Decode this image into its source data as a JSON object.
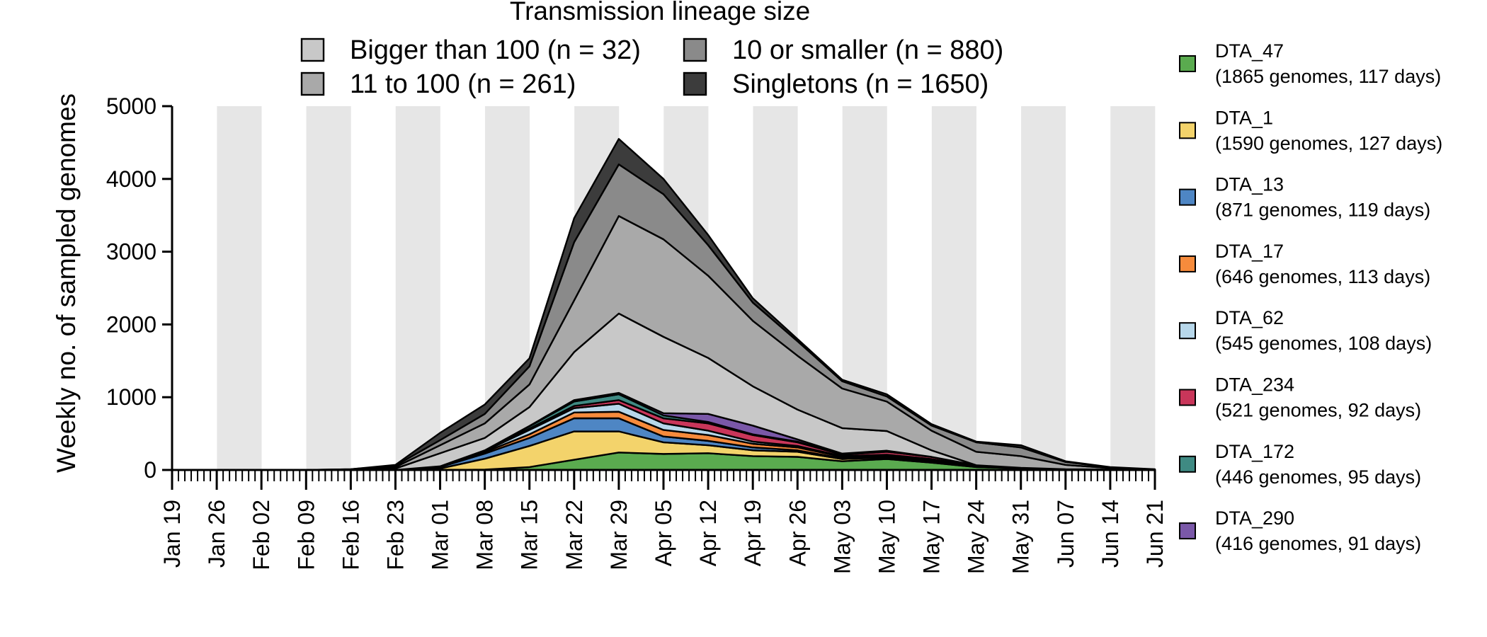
{
  "chart_data": {
    "type": "area",
    "title": "Transmission lineage size",
    "xlabel": "",
    "ylabel": "Weekly no. of sampled genomes",
    "ylim": [
      0,
      5000
    ],
    "yticks": [
      "0",
      "1000",
      "2000",
      "3000",
      "4000",
      "5000"
    ],
    "x": [
      "Jan 19",
      "Jan 26",
      "Feb 02",
      "Feb 09",
      "Feb 16",
      "Feb 23",
      "Mar 01",
      "Mar 08",
      "Mar 15",
      "Mar 22",
      "Mar 29",
      "Apr 05",
      "Apr 12",
      "Apr 19",
      "Apr 26",
      "May 03",
      "May 10",
      "May 17",
      "May 24",
      "May 31",
      "Jun 07",
      "Jun 14",
      "Jun 21"
    ],
    "background": "alternating light grey weekly bands",
    "size_legend": [
      {
        "label": "Bigger than 100 (n = 32)",
        "color": "#c8c8c8"
      },
      {
        "label": "10 or smaller (n = 880)",
        "color": "#8a8a8a"
      },
      {
        "label": "11 to 100 (n = 261)",
        "color": "#a9a9a9"
      },
      {
        "label": "Singletons (n = 1650)",
        "color": "#3c3c3c"
      }
    ],
    "lineages": [
      {
        "name": "DTA_47",
        "desc": "(1865 genomes, 117 days)",
        "color": "#5aab4f"
      },
      {
        "name": "DTA_1",
        "desc": "(1590 genomes, 127 days)",
        "color": "#f3d36b"
      },
      {
        "name": "DTA_13",
        "desc": "(871 genomes, 119 days)",
        "color": "#4e86c4"
      },
      {
        "name": "DTA_17",
        "desc": "(646 genomes, 113 days)",
        "color": "#f68b3c"
      },
      {
        "name": "DTA_62",
        "desc": "(545 genomes, 108 days)",
        "color": "#b7d7ea"
      },
      {
        "name": "DTA_234",
        "desc": "(521 genomes, 92 days)",
        "color": "#c9365a"
      },
      {
        "name": "DTA_172",
        "desc": "(446 genomes, 95 days)",
        "color": "#3f8a83"
      },
      {
        "name": "DTA_290",
        "desc": "(416 genomes, 91 days)",
        "color": "#7a58a8"
      }
    ],
    "series": [
      {
        "name": "DTA_47",
        "color": "#5aab4f",
        "values": [
          0,
          0,
          0,
          0,
          0,
          0,
          0,
          5,
          40,
          140,
          240,
          220,
          230,
          190,
          180,
          120,
          150,
          100,
          40,
          20,
          10,
          5,
          0
        ]
      },
      {
        "name": "DTA_1",
        "color": "#f3d36b",
        "values": [
          0,
          0,
          0,
          0,
          0,
          0,
          20,
          150,
          290,
          390,
          290,
          160,
          110,
          80,
          70,
          30,
          20,
          15,
          5,
          5,
          0,
          0,
          0
        ]
      },
      {
        "name": "DTA_13",
        "color": "#4e86c4",
        "values": [
          0,
          0,
          0,
          0,
          0,
          0,
          20,
          70,
          110,
          180,
          180,
          80,
          60,
          40,
          20,
          10,
          10,
          10,
          5,
          0,
          0,
          0,
          0
        ]
      },
      {
        "name": "DTA_17",
        "color": "#f68b3c",
        "values": [
          0,
          0,
          0,
          0,
          0,
          0,
          5,
          20,
          50,
          80,
          90,
          90,
          80,
          50,
          40,
          20,
          20,
          20,
          5,
          0,
          0,
          0,
          0
        ]
      },
      {
        "name": "DTA_62",
        "color": "#b7d7ea",
        "values": [
          0,
          0,
          0,
          0,
          0,
          0,
          5,
          15,
          60,
          60,
          110,
          90,
          60,
          30,
          20,
          10,
          10,
          5,
          0,
          0,
          0,
          0,
          0
        ]
      },
      {
        "name": "DTA_234",
        "color": "#c9365a",
        "values": [
          0,
          0,
          0,
          0,
          0,
          0,
          0,
          5,
          20,
          30,
          50,
          70,
          100,
          90,
          50,
          20,
          40,
          30,
          10,
          5,
          0,
          0,
          0
        ]
      },
      {
        "name": "DTA_172",
        "color": "#3f8a83",
        "values": [
          0,
          0,
          0,
          0,
          0,
          0,
          0,
          5,
          30,
          60,
          80,
          40,
          20,
          10,
          10,
          5,
          5,
          0,
          0,
          0,
          0,
          0,
          0
        ]
      },
      {
        "name": "DTA_290",
        "color": "#7a58a8",
        "values": [
          0,
          0,
          0,
          0,
          0,
          0,
          0,
          0,
          5,
          20,
          20,
          30,
          110,
          120,
          30,
          10,
          10,
          0,
          0,
          0,
          0,
          0,
          0
        ]
      },
      {
        "name": "Other bigger than 100",
        "color": "#c8c8c8",
        "values": [
          0,
          0,
          0,
          0,
          0,
          20,
          180,
          170,
          260,
          660,
          1090,
          1050,
          770,
          540,
          410,
          350,
          270,
          90,
          0,
          0,
          0,
          0,
          0
        ]
      },
      {
        "name": "11 to 100",
        "color": "#a9a9a9",
        "values": [
          0,
          0,
          0,
          0,
          0,
          20,
          110,
          200,
          310,
          710,
          1340,
          1340,
          1130,
          900,
          740,
          545,
          405,
          270,
          185,
          160,
          60,
          20,
          5
        ]
      },
      {
        "name": "10 or smaller",
        "color": "#8a8a8a",
        "values": [
          0,
          0,
          0,
          0,
          10,
          20,
          70,
          130,
          250,
          800,
          710,
          620,
          420,
          250,
          200,
          100,
          70,
          70,
          130,
          120,
          40,
          10,
          3
        ]
      },
      {
        "name": "Singletons",
        "color": "#3c3c3c",
        "values": [
          0,
          0,
          0,
          0,
          0,
          10,
          100,
          130,
          110,
          330,
          350,
          210,
          140,
          60,
          30,
          20,
          30,
          20,
          10,
          30,
          10,
          5,
          2
        ]
      }
    ]
  }
}
